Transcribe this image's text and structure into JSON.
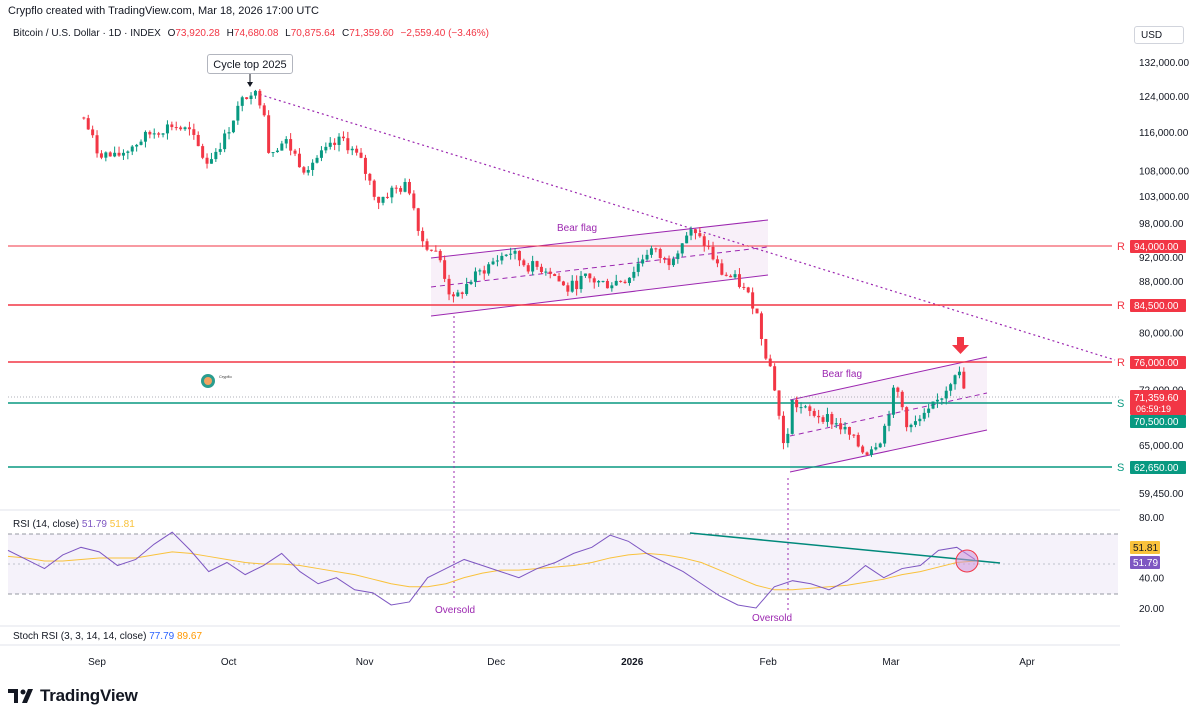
{
  "header": {
    "created_by": "Crypflo created with TradingView.com, Mar 18, 2026 17:00 UTC",
    "symbol": "Bitcoin / U.S. Dollar · 1D · INDEX",
    "open_label": "O",
    "open": "73,920.28",
    "high_label": "H",
    "high": "74,680.08",
    "low_label": "L",
    "low": "70,875.64",
    "close_label": "C",
    "close": "71,359.60",
    "change": "−2,559.40 (−3.46%)",
    "currency": "USD"
  },
  "annotations": {
    "cycle_top": "Cycle top 2025",
    "bear_flag_1": "Bear flag",
    "bear_flag_2": "Bear flag",
    "oversold_1": "Oversold",
    "oversold_2": "Oversold",
    "resistance_marker": "R",
    "support_marker": "S",
    "watermark": "Crypflo"
  },
  "price_tags": {
    "r1": "94,000.00",
    "r2": "84,500.00",
    "r3": "76,000.00",
    "last": "71,359.60",
    "countdown": "06:59:19",
    "s1": "70,500.00",
    "s2": "62,650.00"
  },
  "indicators": {
    "rsi_label": "RSI (14, close)",
    "rsi_value": "51.79",
    "rsi_ma": "51.81",
    "stoch_label": "Stoch RSI (3, 3, 14, 14, close)",
    "stoch_k": "77.79",
    "stoch_d": "89.67"
  },
  "footer": {
    "brand": "TradingView"
  },
  "colors": {
    "up": "#089981",
    "down": "#f23645",
    "resistance": "#f23645",
    "support": "#089981",
    "channel": "#9c27b0",
    "rsi": "#7e57c2",
    "rsi_ma": "#f9c23c",
    "trend": "#9c27b0"
  },
  "chart_data": {
    "type": "candlestick",
    "price_axis_ticks": [
      "132,000.00",
      "124,000.00",
      "116,000.00",
      "108,000.00",
      "103,000.00",
      "98,000.00",
      "92,000.00",
      "88,000.00",
      "80,000.00",
      "72,000.00",
      "65,000.00",
      "59,450.00"
    ],
    "rsi_axis_ticks": [
      "80.00",
      "40.00",
      "20.00"
    ],
    "x_ticks": [
      "Sep",
      "Oct",
      "Nov",
      "Dec",
      "2026",
      "Feb",
      "Mar",
      "Apr"
    ],
    "resistance_levels": [
      94000,
      84500,
      76000
    ],
    "support_levels": [
      70500,
      62650
    ],
    "last_price": 71359.6,
    "price_path": [
      [
        "2025-08-29",
        119000
      ],
      [
        "2025-09-01",
        112000
      ],
      [
        "2025-09-05",
        110500
      ],
      [
        "2025-09-09",
        113000
      ],
      [
        "2025-09-13",
        115500
      ],
      [
        "2025-09-18",
        117500
      ],
      [
        "2025-09-22",
        116000
      ],
      [
        "2025-09-26",
        109500
      ],
      [
        "2025-09-30",
        114500
      ],
      [
        "2025-10-03",
        121000
      ],
      [
        "2025-10-06",
        125500
      ],
      [
        "2025-10-09",
        122000
      ],
      [
        "2025-10-10",
        112000
      ],
      [
        "2025-10-14",
        114000
      ],
      [
        "2025-10-18",
        108500
      ],
      [
        "2025-10-22",
        111000
      ],
      [
        "2025-10-27",
        114500
      ],
      [
        "2025-10-31",
        110000
      ],
      [
        "2025-11-04",
        102000
      ],
      [
        "2025-11-07",
        104000
      ],
      [
        "2025-11-11",
        105000
      ],
      [
        "2025-11-14",
        95000
      ],
      [
        "2025-11-18",
        92000
      ],
      [
        "2025-11-21",
        84500
      ],
      [
        "2025-11-25",
        88000
      ],
      [
        "2025-11-30",
        91000
      ],
      [
        "2025-12-04",
        93000
      ],
      [
        "2025-12-08",
        90500
      ],
      [
        "2025-12-13",
        90000
      ],
      [
        "2025-12-17",
        86500
      ],
      [
        "2025-12-21",
        88500
      ],
      [
        "2025-12-26",
        87500
      ],
      [
        "2025-12-31",
        88500
      ],
      [
        "2026-01-05",
        93500
      ],
      [
        "2026-01-09",
        91000
      ],
      [
        "2026-01-14",
        96500
      ],
      [
        "2026-01-18",
        94000
      ],
      [
        "2026-01-21",
        89500
      ],
      [
        "2026-01-25",
        88000
      ],
      [
        "2026-01-29",
        84000
      ],
      [
        "2026-01-31",
        78000
      ],
      [
        "2026-02-02",
        74000
      ],
      [
        "2026-02-05",
        63000
      ],
      [
        "2026-02-06",
        70500
      ],
      [
        "2026-02-10",
        69000
      ],
      [
        "2026-02-14",
        68500
      ],
      [
        "2026-02-18",
        67000
      ],
      [
        "2026-02-23",
        64000
      ],
      [
        "2026-02-27",
        66000
      ],
      [
        "2026-03-02",
        72500
      ],
      [
        "2026-03-05",
        67000
      ],
      [
        "2026-03-09",
        68500
      ],
      [
        "2026-03-13",
        71500
      ],
      [
        "2026-03-16",
        75000
      ],
      [
        "2026-03-18",
        71360
      ]
    ],
    "rsi_values": [
      58,
      52,
      46,
      55,
      60,
      57,
      48,
      52,
      62,
      70,
      58,
      44,
      50,
      42,
      48,
      56,
      44,
      36,
      40,
      32,
      30,
      22,
      24,
      40,
      46,
      52,
      48,
      44,
      40,
      46,
      50,
      56,
      60,
      68,
      64,
      56,
      50,
      44,
      36,
      28,
      22,
      20,
      34,
      38,
      36,
      32,
      38,
      48,
      40,
      46,
      48,
      58,
      60,
      52
    ],
    "rsi_ma_values": [
      54,
      53,
      51,
      51,
      52,
      53,
      53,
      53,
      55,
      57,
      56,
      54,
      52,
      50,
      49,
      49,
      48,
      46,
      44,
      42,
      39,
      36,
      34,
      34,
      36,
      40,
      43,
      45,
      45,
      46,
      47,
      48,
      50,
      53,
      55,
      56,
      55,
      53,
      50,
      45,
      40,
      35,
      32,
      32,
      33,
      34,
      35,
      37,
      39,
      42,
      44,
      47,
      50,
      51
    ],
    "trend_channel_1": "Bear flag",
    "trend_channel_2": "Bear flag"
  }
}
